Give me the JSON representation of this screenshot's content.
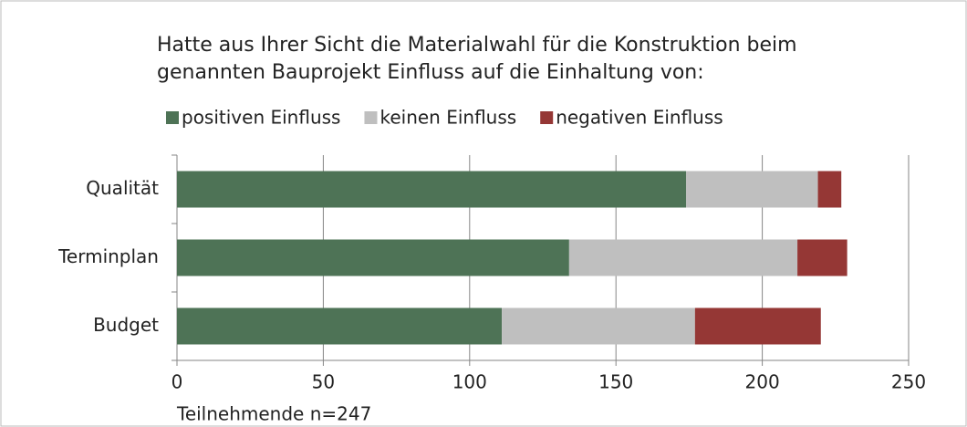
{
  "chart_data": {
    "type": "stacked-bar-horizontal",
    "title": [
      "Hatte aus Ihrer Sicht die Materialwahl für die Konstruktion beim",
      "genannten Bauprojekt Einfluss auf die Einhaltung von:"
    ],
    "categories": [
      "Qualität",
      "Terminplan",
      "Budget"
    ],
    "series": [
      {
        "name": "positiven Einfluss",
        "color": "#4e7356",
        "values": [
          174,
          134,
          111
        ]
      },
      {
        "name": "keinen Einfluss",
        "color": "#bfbfbf",
        "values": [
          45,
          78,
          66
        ]
      },
      {
        "name": "negativen Einfluss",
        "color": "#953735",
        "values": [
          8,
          17,
          43
        ]
      }
    ],
    "xlim": [
      0,
      250
    ],
    "xticks": [
      0,
      50,
      100,
      150,
      200,
      250
    ],
    "grid": true,
    "legend": "top",
    "note": "Teilnehmende n=247"
  }
}
